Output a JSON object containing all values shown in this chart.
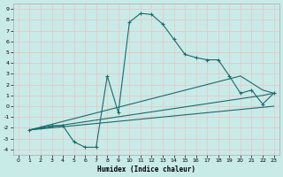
{
  "xlabel": "Humidex (Indice chaleur)",
  "bg_color": "#c8ebe8",
  "grid_color": "#e8c8c8",
  "line_color": "#1a6b6b",
  "xlim": [
    -0.5,
    23.5
  ],
  "ylim": [
    -4.5,
    9.5
  ],
  "xticks": [
    0,
    1,
    2,
    3,
    4,
    5,
    6,
    7,
    8,
    9,
    10,
    11,
    12,
    13,
    14,
    15,
    16,
    17,
    18,
    19,
    20,
    21,
    22,
    23
  ],
  "yticks": [
    -4,
    -3,
    -2,
    -1,
    0,
    1,
    2,
    3,
    4,
    5,
    6,
    7,
    8,
    9
  ],
  "series1_x": [
    1,
    2,
    3,
    4,
    5,
    6,
    7,
    8,
    9,
    10,
    11,
    12,
    13,
    14,
    15,
    16,
    17,
    18,
    19,
    20,
    21,
    22,
    23
  ],
  "series1_y": [
    -2.2,
    -2.0,
    -1.8,
    -1.8,
    -3.3,
    -3.8,
    -3.8,
    2.8,
    -0.6,
    7.8,
    8.6,
    8.5,
    7.6,
    6.2,
    4.8,
    4.5,
    4.3,
    4.3,
    2.8,
    1.2,
    1.5,
    0.2,
    1.2
  ],
  "series2_x": [
    1,
    20,
    22,
    23
  ],
  "series2_y": [
    -2.2,
    2.8,
    1.5,
    1.2
  ],
  "series3_x": [
    1,
    22,
    23
  ],
  "series3_y": [
    -2.2,
    1.0,
    1.2
  ],
  "series4_x": [
    1,
    23
  ],
  "series4_y": [
    -2.2,
    0.0
  ]
}
